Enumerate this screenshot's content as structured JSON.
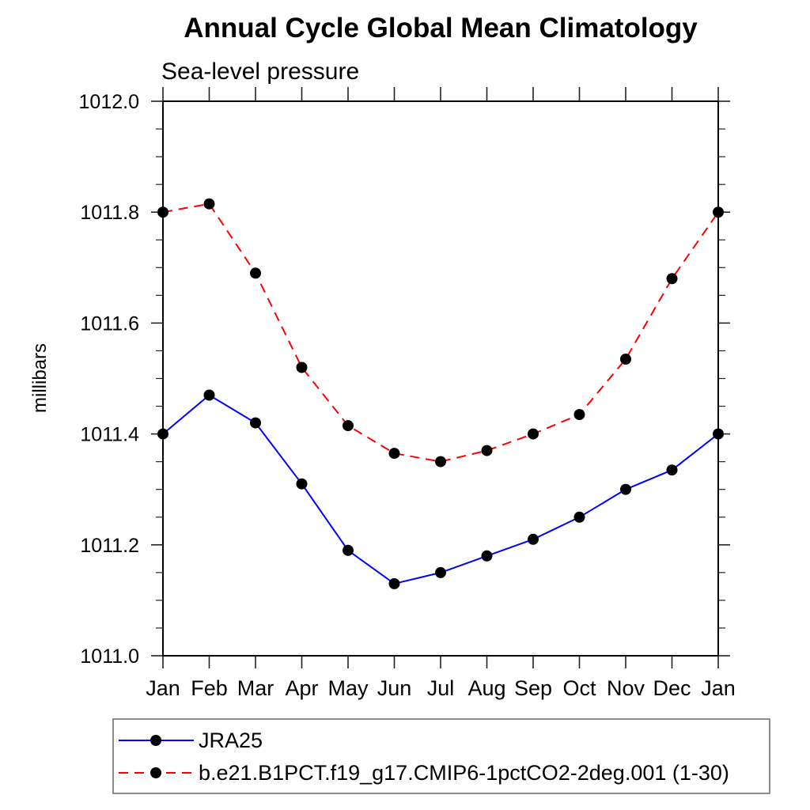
{
  "title": "Annual Cycle Global Mean Climatology",
  "subtitle": "Sea-level pressure",
  "chart_data": {
    "type": "line",
    "title": "Annual Cycle Global Mean Climatology",
    "subtitle": "Sea-level pressure",
    "ylabel": "millibars",
    "xlabel": "",
    "x_categories": [
      "Jan",
      "Feb",
      "Mar",
      "Apr",
      "May",
      "Jun",
      "Jul",
      "Aug",
      "Sep",
      "Oct",
      "Nov",
      "Dec",
      "Jan"
    ],
    "ylim": [
      1011.0,
      1012.0
    ],
    "ytick_step": 0.2,
    "yminor_step": 0.05,
    "ytick_decimals": 1,
    "grid": false,
    "legend_position": "bottom-left-box",
    "series": [
      {
        "name": "JRA25",
        "color": "#0000ff",
        "line_style": "solid",
        "marker": "circle",
        "marker_color": "#000000",
        "values": [
          1011.4,
          1011.47,
          1011.42,
          1011.31,
          1011.19,
          1011.13,
          1011.15,
          1011.18,
          1011.21,
          1011.25,
          1011.3,
          1011.335,
          1011.4
        ]
      },
      {
        "name": "b.e21.B1PCT.f19_g17.CMIP6-1pctCO2-2deg.001 (1-30)",
        "color": "#ff0000",
        "line_style": "dashed",
        "marker": "circle",
        "marker_color": "#000000",
        "values": [
          1011.8,
          1011.815,
          1011.69,
          1011.52,
          1011.415,
          1011.365,
          1011.35,
          1011.37,
          1011.4,
          1011.435,
          1011.535,
          1011.68,
          1011.8
        ]
      }
    ]
  },
  "colors": {
    "axis": "#000000",
    "tick": "#222222",
    "legend_border": "#666666",
    "background": "#ffffff"
  }
}
